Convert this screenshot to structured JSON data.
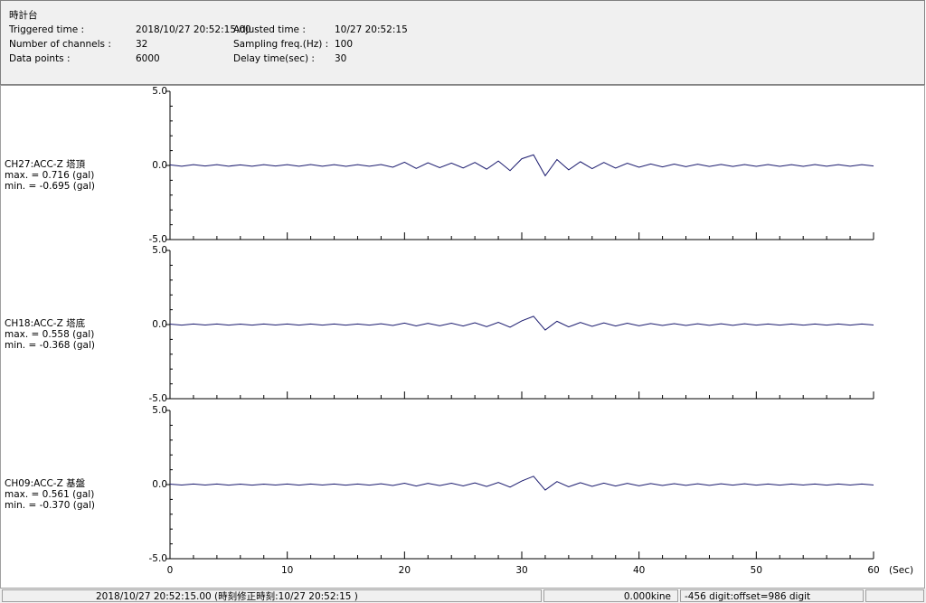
{
  "window": {
    "title": "時計台"
  },
  "header": {
    "fields": [
      {
        "label": "Triggered time :",
        "value": "2018/10/27 20:52:15.00"
      },
      {
        "label": "Number of channels :",
        "value": "32"
      },
      {
        "label": "Data points :",
        "value": "6000"
      },
      {
        "label": "Adjusted time :",
        "value": "10/27 20:52:15"
      },
      {
        "label": "Sampling freq.(Hz) :",
        "value": "100"
      },
      {
        "label": "Delay time(sec) :",
        "value": "30"
      }
    ]
  },
  "chart_data": [
    {
      "type": "line",
      "title": "CH27:ACC-Z 塔頂",
      "annotations": [
        "max. = 0.716 (gal)",
        "min. = -0.695 (gal)"
      ],
      "x": [
        0,
        1,
        2,
        3,
        4,
        5,
        6,
        7,
        8,
        9,
        10,
        11,
        12,
        13,
        14,
        15,
        16,
        17,
        18,
        19,
        20,
        21,
        22,
        23,
        24,
        25,
        26,
        27,
        28,
        29,
        30,
        31,
        32,
        33,
        34,
        35,
        36,
        37,
        38,
        39,
        40,
        41,
        42,
        43,
        44,
        45,
        46,
        47,
        48,
        49,
        50,
        51,
        52,
        53,
        54,
        55,
        56,
        57,
        58,
        59,
        60
      ],
      "series": [
        {
          "color": "#1a1a6e",
          "values": [
            0.04,
            -0.05,
            0.05,
            -0.04,
            0.05,
            -0.05,
            0.04,
            -0.05,
            0.05,
            -0.04,
            0.05,
            -0.05,
            0.06,
            -0.05,
            0.05,
            -0.06,
            0.05,
            -0.05,
            0.06,
            -0.12,
            0.22,
            -0.2,
            0.18,
            -0.15,
            0.16,
            -0.17,
            0.2,
            -0.25,
            0.3,
            -0.35,
            0.45,
            0.716,
            -0.695,
            0.4,
            -0.3,
            0.25,
            -0.22,
            0.2,
            -0.18,
            0.15,
            -0.12,
            0.1,
            -0.1,
            0.09,
            -0.08,
            0.08,
            -0.07,
            0.07,
            -0.07,
            0.06,
            -0.06,
            0.06,
            -0.06,
            0.05,
            -0.06,
            0.06,
            -0.05,
            0.05,
            -0.05,
            0.05,
            -0.04
          ]
        }
      ],
      "xlim": [
        0,
        60
      ],
      "xticks": [
        0,
        10,
        20,
        30,
        40,
        50,
        60
      ],
      "xminorticks": [
        2,
        4,
        6,
        8,
        12,
        14,
        16,
        18,
        22,
        24,
        26,
        28,
        32,
        34,
        36,
        38,
        42,
        44,
        46,
        48,
        52,
        54,
        56,
        58
      ],
      "ylim": [
        -5,
        5
      ],
      "yticks": [
        {
          "value": 5,
          "label": "5.0"
        },
        {
          "value": 0,
          "label": "0.0"
        },
        {
          "value": -5,
          "label": "-5.0"
        }
      ],
      "yminorticks": [
        4,
        3,
        2,
        1,
        -1,
        -2,
        -3,
        -4
      ]
    },
    {
      "type": "line",
      "title": "CH18:ACC-Z 塔底",
      "annotations": [
        "max. = 0.558 (gal)",
        "min. = -0.368 (gal)"
      ],
      "x": [
        0,
        1,
        2,
        3,
        4,
        5,
        6,
        7,
        8,
        9,
        10,
        11,
        12,
        13,
        14,
        15,
        16,
        17,
        18,
        19,
        20,
        21,
        22,
        23,
        24,
        25,
        26,
        27,
        28,
        29,
        30,
        31,
        32,
        33,
        34,
        35,
        36,
        37,
        38,
        39,
        40,
        41,
        42,
        43,
        44,
        45,
        46,
        47,
        48,
        49,
        50,
        51,
        52,
        53,
        54,
        55,
        56,
        57,
        58,
        59,
        60
      ],
      "series": [
        {
          "color": "#1a1a6e",
          "values": [
            0.03,
            -0.04,
            0.04,
            -0.03,
            0.04,
            -0.04,
            0.03,
            -0.04,
            0.04,
            -0.03,
            0.04,
            -0.04,
            0.04,
            -0.04,
            0.04,
            -0.04,
            0.04,
            -0.04,
            0.05,
            -0.06,
            0.1,
            -0.09,
            0.08,
            -0.08,
            0.09,
            -0.1,
            0.12,
            -0.14,
            0.15,
            -0.18,
            0.25,
            0.558,
            -0.368,
            0.22,
            -0.16,
            0.14,
            -0.12,
            0.11,
            -0.1,
            0.09,
            -0.08,
            0.07,
            -0.06,
            0.06,
            -0.06,
            0.05,
            -0.05,
            0.05,
            -0.05,
            0.05,
            -0.04,
            0.04,
            -0.04,
            0.04,
            -0.04,
            0.04,
            -0.04,
            0.04,
            -0.04,
            0.04,
            -0.03
          ]
        }
      ],
      "xlim": [
        0,
        60
      ],
      "xticks": [
        0,
        10,
        20,
        30,
        40,
        50,
        60
      ],
      "xminorticks": [
        2,
        4,
        6,
        8,
        12,
        14,
        16,
        18,
        22,
        24,
        26,
        28,
        32,
        34,
        36,
        38,
        42,
        44,
        46,
        48,
        52,
        54,
        56,
        58
      ],
      "ylim": [
        -5,
        5
      ],
      "yticks": [
        {
          "value": 5,
          "label": "5.0"
        },
        {
          "value": 0,
          "label": "0.0"
        },
        {
          "value": -5,
          "label": "-5.0"
        }
      ],
      "yminorticks": [
        4,
        3,
        2,
        1,
        -1,
        -2,
        -3,
        -4
      ]
    },
    {
      "type": "line",
      "title": "CH09:ACC-Z 基盤",
      "annotations": [
        "max. = 0.561 (gal)",
        "min. = -0.370 (gal)"
      ],
      "x": [
        0,
        1,
        2,
        3,
        4,
        5,
        6,
        7,
        8,
        9,
        10,
        11,
        12,
        13,
        14,
        15,
        16,
        17,
        18,
        19,
        20,
        21,
        22,
        23,
        24,
        25,
        26,
        27,
        28,
        29,
        30,
        31,
        32,
        33,
        34,
        35,
        36,
        37,
        38,
        39,
        40,
        41,
        42,
        43,
        44,
        45,
        46,
        47,
        48,
        49,
        50,
        51,
        52,
        53,
        54,
        55,
        56,
        57,
        58,
        59,
        60
      ],
      "series": [
        {
          "color": "#1a1a6e",
          "values": [
            0.03,
            -0.03,
            0.04,
            -0.03,
            0.04,
            -0.04,
            0.03,
            -0.04,
            0.03,
            -0.03,
            0.04,
            -0.04,
            0.04,
            -0.03,
            0.04,
            -0.04,
            0.04,
            -0.04,
            0.05,
            -0.06,
            0.09,
            -0.1,
            0.08,
            -0.07,
            0.09,
            -0.09,
            0.11,
            -0.13,
            0.14,
            -0.17,
            0.24,
            0.561,
            -0.37,
            0.2,
            -0.15,
            0.13,
            -0.12,
            0.1,
            -0.1,
            0.08,
            -0.08,
            0.07,
            -0.06,
            0.06,
            -0.05,
            0.05,
            -0.05,
            0.05,
            -0.04,
            0.05,
            -0.04,
            0.04,
            -0.04,
            0.04,
            -0.03,
            0.04,
            -0.04,
            0.04,
            -0.03,
            0.04,
            -0.03
          ]
        }
      ],
      "xlim": [
        0,
        60
      ],
      "xticks": [
        0,
        10,
        20,
        30,
        40,
        50,
        60
      ],
      "xminorticks": [
        2,
        4,
        6,
        8,
        12,
        14,
        16,
        18,
        22,
        24,
        26,
        28,
        32,
        34,
        36,
        38,
        42,
        44,
        46,
        48,
        52,
        54,
        56,
        58
      ],
      "ylim": [
        -5,
        5
      ],
      "yticks": [
        {
          "value": 5,
          "label": "5.0"
        },
        {
          "value": 0,
          "label": "0.0"
        },
        {
          "value": -5,
          "label": "-5.0"
        }
      ],
      "yminorticks": [
        4,
        3,
        2,
        1,
        -1,
        -2,
        -3,
        -4
      ],
      "xlabel": "(Sec)"
    }
  ],
  "status": {
    "left": "2018/10/27 20:52:15.00 (時刻修正時刻:10/27 20:52:15 )",
    "middle": "0.000kine",
    "right": "-456 digit:offset=986 digit"
  }
}
